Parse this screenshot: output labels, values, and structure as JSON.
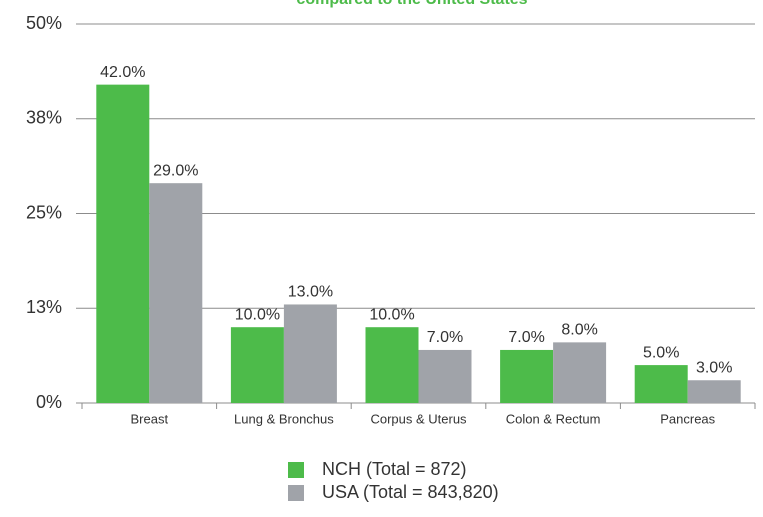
{
  "chart_data": {
    "type": "bar",
    "title": "compared to the United States",
    "categories": [
      "Breast",
      "Lung & Bronchus",
      "Corpus & Uterus",
      "Colon & Rectum",
      "Pancreas"
    ],
    "series": [
      {
        "name": "NCH (Total = 872)",
        "color": "#4dbb4a",
        "values": [
          42,
          10,
          10,
          7,
          5
        ],
        "value_labels": [
          "42.0%",
          "10.0%",
          "10.0%",
          "7.0%",
          "5.0%"
        ]
      },
      {
        "name": "USA (Total = 843,820)",
        "color": "#a0a3a9",
        "values": [
          29,
          13,
          7,
          8,
          3
        ],
        "value_labels": [
          "29.0%",
          "13.0%",
          "7.0%",
          "8.0%",
          "3.0%"
        ]
      }
    ],
    "ylim": [
      0,
      50
    ],
    "yticks": [
      {
        "value": 0,
        "label": "0%"
      },
      {
        "value": 12.5,
        "label": "13%"
      },
      {
        "value": 25,
        "label": "25%"
      },
      {
        "value": 37.5,
        "label": "38%"
      },
      {
        "value": 50,
        "label": "50%"
      }
    ],
    "grid": true,
    "legend": "bottom"
  }
}
